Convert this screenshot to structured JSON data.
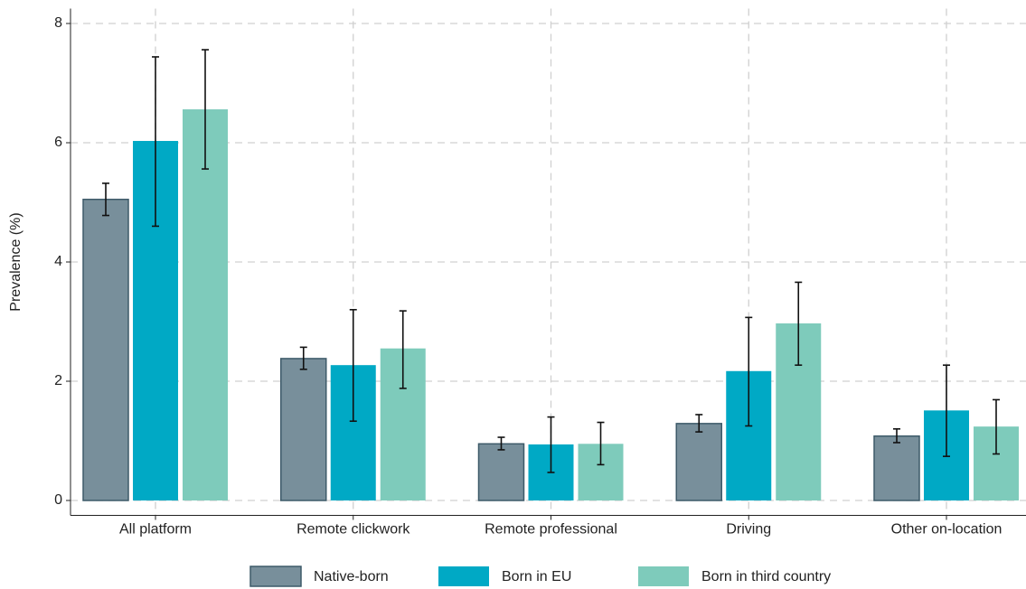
{
  "chart_data": {
    "type": "bar",
    "y_label": "Prevalence (%)",
    "categories": [
      "All platform",
      "Remote clickwork",
      "Remote professional",
      "Driving",
      "Other on-location"
    ],
    "series": [
      {
        "name": "Native-born",
        "color": "#788f9b",
        "edge": "#3d5a69",
        "values": [
          5.05,
          2.38,
          0.95,
          1.29,
          1.08
        ],
        "lower": [
          4.78,
          2.2,
          0.85,
          1.15,
          0.97
        ],
        "upper": [
          5.32,
          2.57,
          1.06,
          1.44,
          1.2
        ]
      },
      {
        "name": "Born in EU",
        "color": "#00a9c5",
        "values": [
          6.03,
          2.27,
          0.94,
          2.17,
          1.51
        ],
        "lower": [
          4.6,
          1.33,
          0.47,
          1.25,
          0.74
        ],
        "upper": [
          7.44,
          3.2,
          1.4,
          3.07,
          2.27
        ]
      },
      {
        "name": "Born in third country",
        "color": "#7ecbbb",
        "values": [
          6.56,
          2.55,
          0.95,
          2.97,
          1.24
        ],
        "lower": [
          5.56,
          1.88,
          0.6,
          2.27,
          0.78
        ],
        "upper": [
          7.56,
          3.18,
          1.31,
          3.66,
          1.69
        ]
      }
    ],
    "ylim": [
      -0.25,
      8.25
    ],
    "yticks": [
      0,
      2,
      4,
      6,
      8
    ],
    "grid": true
  }
}
